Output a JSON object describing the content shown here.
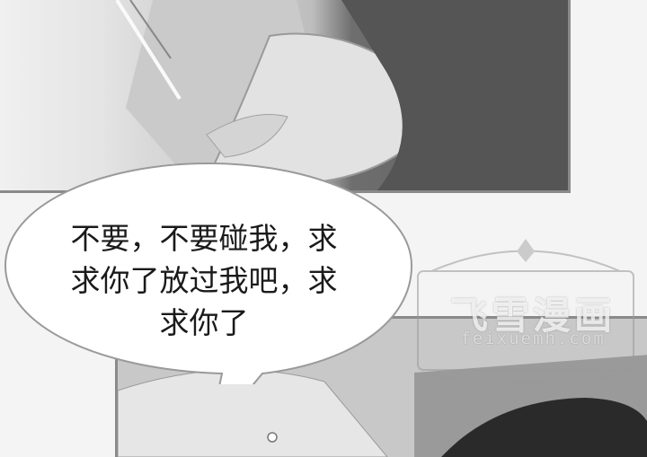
{
  "speech_bubble": {
    "lines": [
      "不要，不要碰我，求",
      "求你了放过我吧，求",
      "求你了"
    ]
  },
  "watermark": {
    "title": "飞雪漫画",
    "url": "feixuemh.com"
  },
  "colors": {
    "bubble_fill": "#ffffff",
    "bubble_stroke": "#9a9a9a",
    "panel_border": "#8a8a8a"
  }
}
